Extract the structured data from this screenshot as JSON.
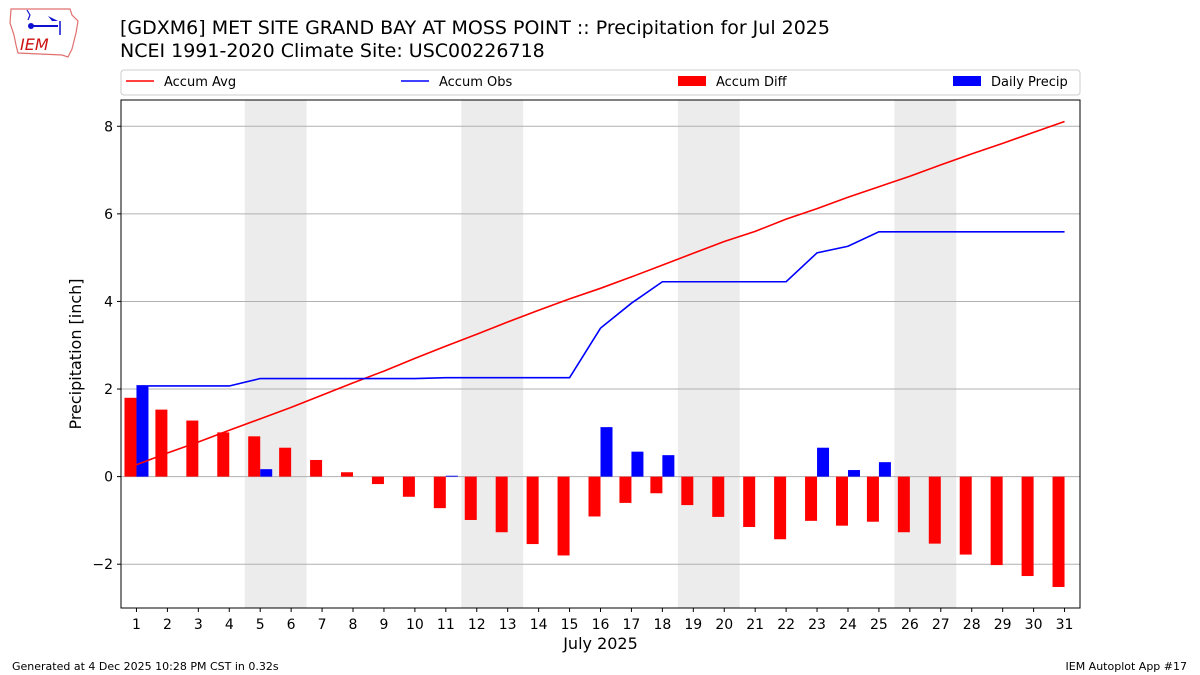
{
  "header": {
    "logo_text": "IEM",
    "title_line1": "[GDXM6] MET SITE GRAND BAY AT MOSS POINT :: Precipitation for Jul 2025",
    "title_line2": "NCEI 1991-2020 Climate Site: USC00226718"
  },
  "footer": {
    "left": "Generated at 4 Dec 2025 10:28 PM CST in 0.32s",
    "right": "IEM Autoplot App #17"
  },
  "chart_data": {
    "type": "bar",
    "xlabel": "July 2025",
    "ylabel": "Precipitation [inch]",
    "x": [
      1,
      2,
      3,
      4,
      5,
      6,
      7,
      8,
      9,
      10,
      11,
      12,
      13,
      14,
      15,
      16,
      17,
      18,
      19,
      20,
      21,
      22,
      23,
      24,
      25,
      26,
      27,
      28,
      29,
      30,
      31
    ],
    "xlim": [
      0.5,
      31.5
    ],
    "ylim": [
      -3.0,
      8.6
    ],
    "yticks": [
      -2,
      0,
      2,
      4,
      6,
      8
    ],
    "grid": "horizontal",
    "weekend_shading": [
      [
        4.5,
        6.5
      ],
      [
        11.5,
        13.5
      ],
      [
        18.5,
        20.5
      ],
      [
        25.5,
        27.5
      ]
    ],
    "legend_position": "top",
    "series": [
      {
        "name": "Accum Avg",
        "kind": "line",
        "color": "#ff0000",
        "values": [
          0.27,
          0.54,
          0.79,
          1.06,
          1.32,
          1.58,
          1.86,
          2.14,
          2.41,
          2.7,
          2.98,
          3.25,
          3.53,
          3.8,
          4.06,
          4.3,
          4.56,
          4.83,
          5.1,
          5.37,
          5.6,
          5.88,
          6.12,
          6.38,
          6.62,
          6.86,
          7.12,
          7.37,
          7.61,
          7.86,
          8.11
        ]
      },
      {
        "name": "Accum Obs",
        "kind": "line",
        "color": "#0000ff",
        "values": [
          2.07,
          2.07,
          2.07,
          2.07,
          2.24,
          2.24,
          2.24,
          2.24,
          2.24,
          2.24,
          2.26,
          2.26,
          2.26,
          2.26,
          2.26,
          3.39,
          3.96,
          4.45,
          4.45,
          4.45,
          4.45,
          4.45,
          5.11,
          5.26,
          5.59,
          5.59,
          5.59,
          5.59,
          5.59,
          5.59,
          5.59
        ]
      },
      {
        "name": "Accum Diff",
        "kind": "bar",
        "color": "#ff0000",
        "values": [
          1.8,
          1.53,
          1.28,
          1.01,
          0.92,
          0.66,
          0.38,
          0.1,
          -0.17,
          -0.46,
          -0.72,
          -0.99,
          -1.27,
          -1.54,
          -1.8,
          -0.91,
          -0.6,
          -0.38,
          -0.65,
          -0.92,
          -1.15,
          -1.43,
          -1.01,
          -1.12,
          -1.03,
          -1.27,
          -1.53,
          -1.78,
          -2.02,
          -2.27,
          -2.52
        ]
      },
      {
        "name": "Daily Precip",
        "kind": "bar",
        "color": "#0000ff",
        "values": [
          2.07,
          0,
          0,
          0,
          0.17,
          0,
          0,
          0,
          0,
          0,
          0.02,
          0,
          0,
          0,
          0,
          1.13,
          0.57,
          0.49,
          0,
          0,
          0,
          0,
          0.66,
          0.15,
          0.33,
          0,
          0,
          0,
          0,
          0,
          0
        ]
      }
    ]
  }
}
